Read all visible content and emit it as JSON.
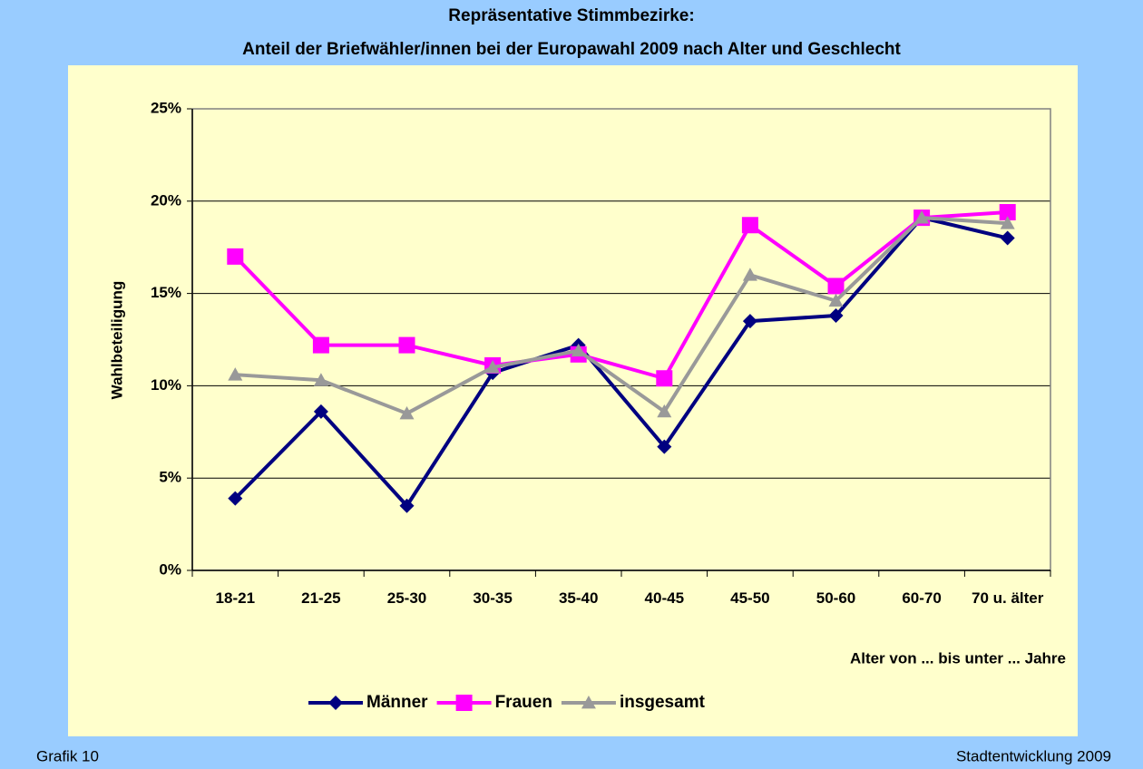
{
  "chart_data": {
    "type": "line",
    "title": "Repräsentative Stimmbezirke:",
    "subtitle": "Anteil der Briefwähler/innen bei der Europawahl 2009 nach Alter und Geschlecht",
    "y_label": "Wahlbeteiligung",
    "x_label": "Alter von ... bis unter ... Jahre",
    "categories": [
      "18-21",
      "21-25",
      "25-30",
      "30-35",
      "35-40",
      "40-45",
      "45-50",
      "50-60",
      "60-70",
      "70 u. älter"
    ],
    "series": [
      {
        "name": "Männer",
        "color": "#000080",
        "marker": "diamond",
        "values": [
          3.9,
          8.6,
          3.5,
          10.7,
          12.2,
          6.7,
          13.5,
          13.8,
          19.1,
          18.0
        ]
      },
      {
        "name": "Frauen",
        "color": "#ff00ff",
        "marker": "square",
        "values": [
          17.0,
          12.2,
          12.2,
          11.1,
          11.7,
          10.4,
          18.7,
          15.4,
          19.1,
          19.4
        ]
      },
      {
        "name": "insgesamt",
        "color": "#999999",
        "marker": "triangle",
        "values": [
          10.6,
          10.3,
          8.5,
          11.0,
          11.9,
          8.6,
          16.0,
          14.6,
          19.1,
          18.8
        ]
      }
    ],
    "ylim": [
      0,
      25
    ],
    "yticks": [
      {
        "value": 0,
        "label": "0%"
      },
      {
        "value": 5,
        "label": "5%"
      },
      {
        "value": 10,
        "label": "10%"
      },
      {
        "value": 15,
        "label": "15%"
      },
      {
        "value": 20,
        "label": "20%"
      },
      {
        "value": 25,
        "label": "25%"
      }
    ],
    "grid": true,
    "legend": "bottom",
    "footer_left": "Grafik 10",
    "footer_right": "Stadtentwicklung 2009"
  }
}
